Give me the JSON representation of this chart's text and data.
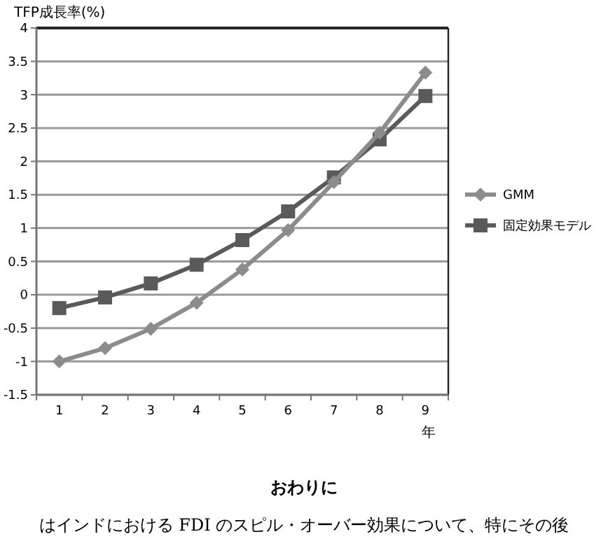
{
  "chart_data": {
    "type": "line",
    "ylabel": "TFP成長率(%)",
    "xlabel": "年",
    "categories": [
      "1",
      "2",
      "3",
      "4",
      "5",
      "6",
      "7",
      "8",
      "9"
    ],
    "series": [
      {
        "name": "GMM",
        "color": "#8c8c8c",
        "marker": "diamond",
        "values": [
          -1.0,
          -0.8,
          -0.51,
          -0.12,
          0.38,
          0.97,
          1.69,
          2.43,
          3.33
        ]
      },
      {
        "name": "固定効果モデル",
        "color": "#5a5a5a",
        "marker": "square",
        "values": [
          -0.2,
          -0.04,
          0.17,
          0.45,
          0.82,
          1.25,
          1.76,
          2.33,
          2.98
        ]
      }
    ],
    "ylim": [
      -1.5,
      4
    ],
    "yticks": [
      -1.5,
      -1,
      -0.5,
      0,
      0.5,
      1,
      1.5,
      2,
      2.5,
      3,
      3.5,
      4
    ],
    "grid": "y",
    "legend": "right",
    "line_style": "solid",
    "annotations": [
      "おわりに",
      "はインドにおける FDI のスピル・オーバー効果について、特にその後"
    ]
  }
}
